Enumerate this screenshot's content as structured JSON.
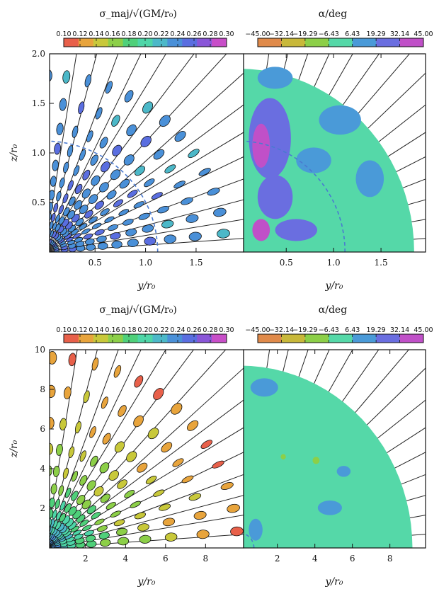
{
  "chart_data": [
    {
      "type": "scatter",
      "panel": "top-left",
      "subtype": "velocity-ellipsoid-map",
      "colorbar": {
        "title": "σ_maj/√(GM/r₀)",
        "ticks": [
          "0.10",
          "0.12",
          "0.14",
          "0.16",
          "0.18",
          "0.20",
          "0.22",
          "0.24",
          "0.26",
          "0.28",
          "0.30"
        ],
        "range": [
          0.1,
          0.3
        ]
      },
      "xlabel": "y/r₀",
      "ylabel": "z/r₀",
      "xlim": [
        0.05,
        1.97
      ],
      "ylim": [
        0.0,
        2.0
      ],
      "xticks": [
        "0.5",
        "1.0",
        "1.5"
      ],
      "yticks": [
        "0.5",
        "1.0",
        "1.5",
        "2.0"
      ],
      "dashed_circle_radius": 1.12,
      "radii": [
        0.12,
        0.2,
        0.28,
        0.36,
        0.46,
        0.58,
        0.72,
        0.88,
        1.05,
        1.25,
        1.5,
        1.78
      ],
      "angles_deg": [
        6,
        13,
        20,
        27,
        34,
        41,
        48,
        55,
        62,
        69,
        76,
        83,
        89
      ],
      "sigma_inner": 0.245,
      "sigma_outer": 0.235
    },
    {
      "type": "heatmap",
      "panel": "top-right",
      "colorbar": {
        "title": "α/deg",
        "ticks": [
          "−45.00",
          "−32.14",
          "−19.29",
          "−6.43",
          "6.43",
          "19.29",
          "32.14",
          "45.00"
        ],
        "range": [
          -45,
          45
        ]
      },
      "xlabel": "y/r₀",
      "xlim": [
        0.05,
        1.97
      ],
      "ylim": [
        0.0,
        2.0
      ],
      "xticks": [
        "0.5",
        "1.0",
        "1.5"
      ],
      "dashed_circle_radius": 1.12,
      "extent_radius": 1.85,
      "background_alpha": 0
    },
    {
      "type": "scatter",
      "panel": "bottom-left",
      "subtype": "velocity-ellipsoid-map",
      "colorbar": {
        "title": "σ_maj/√(GM/r₀)",
        "ticks": [
          "0.10",
          "0.12",
          "0.14",
          "0.16",
          "0.18",
          "0.20",
          "0.22",
          "0.24",
          "0.26",
          "0.28",
          "0.30"
        ],
        "range": [
          0.1,
          0.3
        ]
      },
      "xlabel": "y/r₀",
      "ylabel": "z/r₀",
      "xlim": [
        0.2,
        9.9
      ],
      "ylim": [
        0.0,
        10.0
      ],
      "xticks": [
        "2",
        "4",
        "6",
        "8"
      ],
      "yticks": [
        "2",
        "4",
        "6",
        "8",
        "10"
      ],
      "dashed_circle_radius": 0.75,
      "radii": [
        0.4,
        0.65,
        0.95,
        1.3,
        1.75,
        2.3,
        3.0,
        3.9,
        5.0,
        6.3,
        7.9,
        9.6
      ],
      "angles_deg": [
        5,
        12,
        19,
        26,
        33,
        40,
        47,
        54,
        61,
        68,
        75,
        82,
        88
      ],
      "sigma_inner": 0.235,
      "sigma_outer": 0.12
    },
    {
      "type": "heatmap",
      "panel": "bottom-right",
      "colorbar": {
        "title": "α/deg",
        "ticks": [
          "−45.00",
          "−32.14",
          "−19.29",
          "−6.43",
          "6.43",
          "19.29",
          "32.14",
          "45.00"
        ],
        "range": [
          -45,
          45
        ]
      },
      "xlabel": "y/r₀",
      "xlim": [
        0.2,
        9.9
      ],
      "ylim": [
        0.0,
        10.0
      ],
      "xticks": [
        "2",
        "4",
        "6",
        "8"
      ],
      "dashed_circle_radius": 0.75,
      "extent_radius": 9.2,
      "background_alpha": 0
    }
  ],
  "colors": {
    "sigma_map": [
      "#e8604a",
      "#e8a43c",
      "#c8c83a",
      "#8ccf48",
      "#4fd07a",
      "#4ed6a8",
      "#4cb8c8",
      "#4a90d8",
      "#5a6ee0",
      "#8a56d8",
      "#c84ec8"
    ],
    "alpha_map": [
      "#e08a4a",
      "#c8b83a",
      "#8ccf48",
      "#55d8a8",
      "#4a9ad8",
      "#6a6ee0",
      "#c050c8"
    ],
    "dashed_circle": "#4a7ad0",
    "lines": "#222222"
  }
}
